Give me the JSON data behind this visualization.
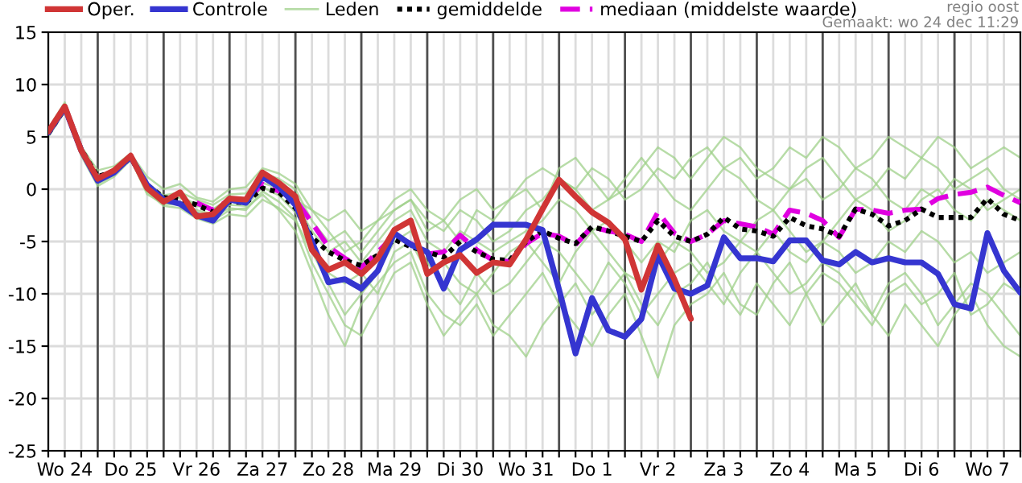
{
  "chart_data": {
    "type": "line",
    "categories": [
      null,
      "Wo 24",
      null,
      null,
      null,
      "Do 25",
      null,
      null,
      null,
      "Vr 26",
      null,
      null,
      null,
      "Za 27",
      null,
      null,
      null,
      "Zo 28",
      null,
      null,
      null,
      "Ma 29",
      null,
      null,
      null,
      "Di 30",
      null,
      null,
      null,
      "Wo 31",
      null,
      null,
      null,
      "Do 1",
      null,
      null,
      null,
      "Vr 2",
      null,
      null,
      null,
      "Za 3",
      null,
      null,
      null,
      "Zo 4",
      null,
      null,
      null,
      "Ma 5",
      null,
      null,
      null,
      "Di 6",
      null,
      null,
      null,
      "Wo 7",
      null,
      null
    ],
    "ylim": [
      -25,
      15
    ],
    "yticks": [
      -25,
      -20,
      -15,
      -10,
      -5,
      0,
      5,
      10,
      15
    ],
    "grid": true,
    "legend": "top",
    "annotations": [
      "regio oost",
      "Gemaakt: wo 24 dec 11:29"
    ],
    "series": [
      {
        "name": "Oper.",
        "color": "#d03535",
        "values": [
          5.5,
          7.9,
          3.7,
          1.0,
          1.8,
          3.2,
          0.1,
          -1.2,
          -0.3,
          -2.6,
          -2.4,
          -0.9,
          -1.0,
          1.6,
          0.6,
          -0.7,
          -5.8,
          -7.7,
          -7.0,
          -8.1,
          -6.6,
          -3.9,
          -3.0,
          -8.1,
          -7.0,
          -6.3,
          -8.0,
          -7.0,
          -7.2,
          -4.8,
          -1.9,
          0.9,
          -0.7,
          -2.2,
          -3.2,
          -4.8,
          -9.6,
          -5.4,
          -8.6,
          -12.4,
          null,
          null,
          null,
          null,
          null,
          null,
          null,
          null,
          null,
          null,
          null,
          null,
          null,
          null,
          null,
          null,
          null,
          null,
          null,
          null
        ]
      },
      {
        "name": "Controle",
        "color": "#3535d0",
        "values": [
          5.4,
          7.8,
          3.7,
          0.8,
          1.6,
          3.1,
          0.4,
          -1.0,
          -1.4,
          -2.5,
          -3.0,
          -1.0,
          -1.3,
          1.2,
          0.2,
          -1.5,
          -5.0,
          -8.9,
          -8.6,
          -9.5,
          -7.8,
          -4.2,
          -5.3,
          -6.0,
          -9.5,
          -5.8,
          -4.8,
          -3.4,
          -3.4,
          -3.4,
          -3.9,
          -9.6,
          -15.7,
          -10.4,
          -13.5,
          -14.1,
          -12.4,
          -6.3,
          -9.5,
          -10.0,
          -9.2,
          -4.6,
          -6.6,
          -6.6,
          -6.9,
          -4.9,
          -4.9,
          -6.8,
          -7.2,
          -6.0,
          -7.0,
          -6.6,
          -7.0,
          -7.0,
          -8.1,
          -11.0,
          -11.4,
          -4.2,
          -7.8,
          -9.9
        ]
      },
      {
        "name": "Leden",
        "color": "#9fd08a",
        "values": [
          5.8,
          8.3,
          4.1,
          1.8,
          2.2,
          3.4,
          1.2,
          0.0,
          0.5,
          -0.8,
          -1.2,
          0.0,
          0.2,
          2.0,
          1.5,
          0.5,
          -2,
          -3,
          -2,
          -4,
          -3,
          -1,
          0,
          -2,
          -3,
          -1,
          0,
          -2,
          -1,
          1,
          2,
          1,
          0,
          2,
          1,
          -1,
          0,
          2,
          1,
          3,
          4,
          2,
          3,
          1,
          2,
          4,
          3,
          5,
          4,
          2,
          3,
          5,
          4,
          3,
          5,
          4,
          2,
          3,
          4,
          3
        ]
      },
      {
        "color": "#9fd08a",
        "values": [
          5.0,
          7.4,
          3.2,
          0.3,
          1.2,
          2.8,
          -0.3,
          -1.6,
          -1.8,
          -2.8,
          -3.3,
          -2.4,
          -2.6,
          -1.0,
          -1.8,
          -3.0,
          -6,
          -9,
          -12,
          -10,
          -8,
          -5,
          -4,
          -7,
          -9,
          -11,
          -8,
          -10,
          -9,
          -7,
          -5,
          -6,
          -8,
          -10,
          -7,
          -9,
          -12,
          -10,
          -8,
          -7,
          -9,
          -11,
          -8,
          -6,
          -8,
          -10,
          -9,
          -7,
          -8,
          -10,
          -12,
          -9,
          -8,
          -10,
          -13,
          -11,
          -9,
          -10,
          -12,
          -14
        ]
      },
      {
        "color": "#9fd08a",
        "values": [
          5.2,
          7.8,
          3.7,
          0.9,
          1.5,
          3.1,
          0.1,
          -1.2,
          -0.6,
          -1.5,
          -2.0,
          -0.8,
          -1.0,
          1.0,
          0.0,
          -1.2,
          -4,
          -6,
          -5,
          -7,
          -5,
          -3,
          -2,
          -5,
          -6,
          -4,
          -5,
          -6,
          -5,
          -4,
          -3,
          -1,
          -2,
          -4,
          -3,
          -5,
          -7,
          -5,
          -6,
          -3,
          -2,
          -4,
          -5,
          -3,
          -2,
          -4,
          -6,
          -5,
          -3,
          -1,
          -2,
          -4,
          -3,
          -1,
          0,
          -2,
          -3,
          -1,
          -2,
          -3
        ]
      },
      {
        "color": "#9fd08a",
        "values": [
          5.4,
          7.5,
          3.4,
          0.5,
          1.4,
          2.9,
          -0.5,
          -1.4,
          -1.5,
          -2.5,
          -3.0,
          -2.0,
          -1.8,
          -0.5,
          -2.0,
          -4.0,
          -8,
          -12,
          -15,
          -11,
          -9,
          -7,
          -6,
          -10,
          -12,
          -13,
          -11,
          -14,
          -12,
          -10,
          -8,
          -11,
          -13,
          -15,
          -12,
          -10,
          -14,
          -18,
          -13,
          -11,
          -10,
          -8,
          -11,
          -12,
          -9,
          -7,
          -10,
          -13,
          -11,
          -9,
          -12,
          -14,
          -11,
          -13,
          -15,
          -12,
          -10,
          -13,
          -15,
          -16
        ]
      },
      {
        "color": "#9fd08a",
        "values": [
          5.6,
          8.0,
          3.9,
          1.3,
          1.9,
          3.3,
          0.6,
          -0.6,
          -0.3,
          -1.0,
          -1.5,
          -0.5,
          -0.4,
          1.5,
          1.0,
          0.0,
          -3,
          -5,
          -4,
          -6,
          -4,
          -2,
          -1,
          -4,
          -3,
          -5,
          -2,
          -3,
          -1,
          0,
          -2,
          2,
          3,
          1,
          -1,
          0,
          2,
          4,
          3,
          1,
          3,
          5,
          4,
          2,
          1,
          0,
          2,
          3,
          1,
          -1,
          0,
          2,
          1,
          3,
          2,
          0,
          1,
          2,
          0,
          -1
        ]
      },
      {
        "color": "#9fd08a",
        "values": [
          5.1,
          7.6,
          3.5,
          0.8,
          1.6,
          3.0,
          0.2,
          -1.1,
          -1.2,
          -2.0,
          -2.4,
          -1.5,
          -1.6,
          0.2,
          -0.6,
          -2.2,
          -5,
          -8,
          -9,
          -8,
          -10,
          -6,
          -5,
          -8,
          -7,
          -9,
          -10,
          -8,
          -6,
          -5,
          -7,
          -9,
          -6,
          -4,
          -6,
          -8,
          -9,
          -7,
          -5,
          -6,
          -8,
          -7,
          -5,
          -6,
          -4,
          -6,
          -7,
          -5,
          -6,
          -8,
          -7,
          -5,
          -6,
          -4,
          -5,
          -7,
          -6,
          -8,
          -7,
          -6
        ]
      },
      {
        "color": "#9fd08a",
        "values": [
          5.3,
          7.7,
          3.6,
          0.7,
          1.5,
          2.9,
          -0.2,
          -1.3,
          -1.4,
          -2.2,
          -2.6,
          -1.8,
          -2.0,
          -0.2,
          -1.2,
          -2.8,
          -7,
          -10,
          -13,
          -14,
          -11,
          -8,
          -7,
          -11,
          -14,
          -12,
          -10,
          -13,
          -14,
          -16,
          -13,
          -11,
          -9,
          -12,
          -10,
          -8,
          -11,
          -13,
          -10,
          -9,
          -7,
          -10,
          -12,
          -9,
          -11,
          -13,
          -10,
          -8,
          -9,
          -11,
          -13,
          -10,
          -9,
          -11,
          -10,
          -8,
          -12,
          -11,
          -9,
          -10
        ]
      },
      {
        "color": "#9fd08a",
        "values": [
          5.5,
          7.9,
          3.8,
          1.1,
          1.7,
          3.2,
          0.4,
          -0.8,
          -0.8,
          -1.6,
          -1.9,
          -0.9,
          -1.1,
          0.6,
          0.1,
          -1.0,
          -2,
          -4,
          -6,
          -5,
          -3,
          -2,
          -1,
          -3,
          -4,
          -2,
          -3,
          -5,
          -4,
          -2,
          -1,
          1,
          0,
          -2,
          -1,
          1,
          3,
          1,
          -1,
          -2,
          0,
          2,
          1,
          -1,
          -2,
          0,
          1,
          -1,
          0,
          2,
          1,
          -1,
          -2,
          0,
          -1,
          1,
          0,
          -2,
          -1,
          0
        ]
      },
      {
        "name": "gemiddelde",
        "color": "#000000",
        "line_style": "dotted",
        "values": [
          5.3,
          7.7,
          3.8,
          1.2,
          1.7,
          3.0,
          0.4,
          -0.8,
          -1.0,
          -1.5,
          -2.2,
          -1.2,
          -1.3,
          0.1,
          -0.3,
          -1.8,
          -4.6,
          -6.0,
          -6.8,
          -7.3,
          -6.3,
          -4.8,
          -5.5,
          -6.0,
          -6.5,
          -5.0,
          -6.0,
          -6.7,
          -6.8,
          -5.0,
          -4.0,
          -4.7,
          -5.2,
          -3.6,
          -4.0,
          -4.5,
          -5.0,
          -3.0,
          -4.5,
          -5.0,
          -4.3,
          -2.7,
          -3.8,
          -4.0,
          -4.5,
          -2.7,
          -3.5,
          -3.8,
          -4.5,
          -1.9,
          -2.4,
          -3.5,
          -3.0,
          -1.9,
          -2.7,
          -2.7,
          -2.7,
          -0.9,
          -2.4,
          -3.0
        ]
      },
      {
        "name": "mediaan (middelste waarde)",
        "color": "#e000e0",
        "line_style": "dashed",
        "values": [
          null,
          null,
          null,
          null,
          null,
          null,
          null,
          null,
          null,
          -1.3,
          -2.0,
          -1.0,
          -1.1,
          0.5,
          -0.2,
          -1.0,
          -3.2,
          -5.5,
          -6.6,
          -7.5,
          -6.0,
          -4.4,
          -5.2,
          -6.2,
          -6.0,
          -4.4,
          -5.8,
          -6.8,
          -6.9,
          -5.2,
          -4.2,
          -4.5,
          -5.3,
          -3.6,
          -4.0,
          -4.3,
          -5.0,
          -2.2,
          -4.2,
          -5.0,
          -4.3,
          -3.0,
          -3.3,
          -3.6,
          -4.3,
          -2.0,
          -2.3,
          -3.0,
          -4.6,
          -1.9,
          -2.0,
          -2.3,
          -2.0,
          -1.9,
          -0.9,
          -0.5,
          -0.3,
          0.2,
          -0.6,
          -1.3
        ]
      }
    ]
  }
}
